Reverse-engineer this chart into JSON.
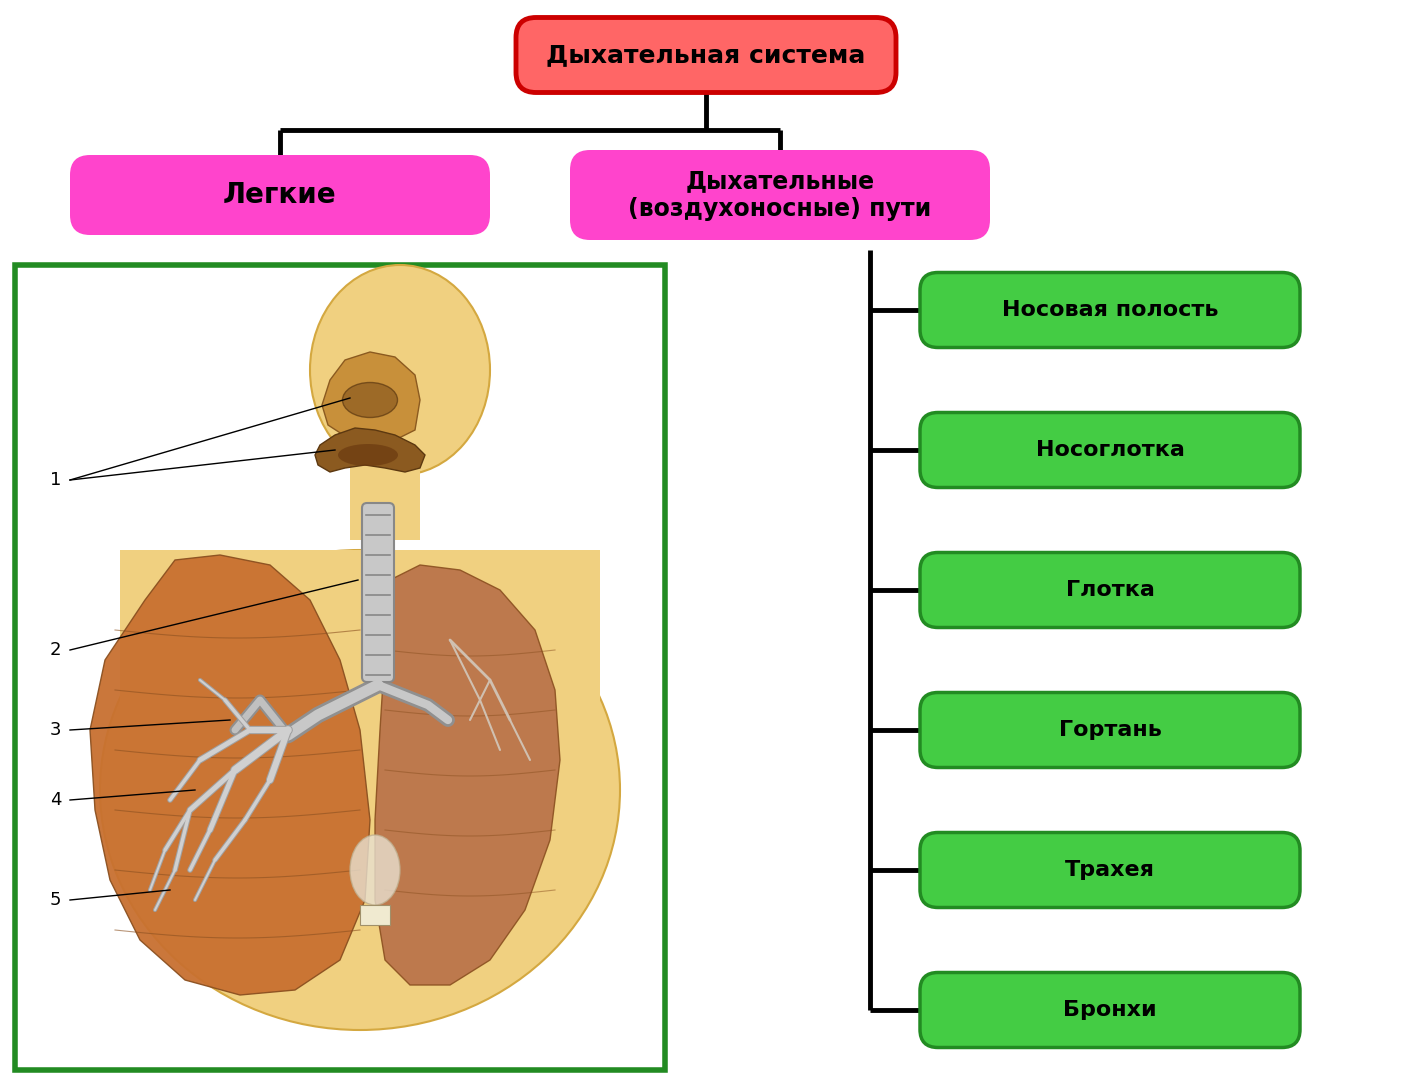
{
  "title": "Дыхательная система",
  "title_facecolor": "#FF6666",
  "title_edgecolor": "#CC0000",
  "branch1_label": "Легкие",
  "branch1_facecolor": "#FF44CC",
  "branch1_edgecolor": "#FF44CC",
  "branch2_label": "Дыхательные\n(воздухоносные) пути",
  "branch2_facecolor": "#FF44CC",
  "branch2_edgecolor": "#FF44CC",
  "green_items": [
    "Носовая полость",
    "Носоглотка",
    "Глотка",
    "Гортань",
    "Трахея",
    "Бронхи"
  ],
  "green_facecolor": "#44CC44",
  "green_edgecolor": "#228B22",
  "bg_color": "#FFFFFF",
  "image_border_color": "#228B22",
  "line_color": "#000000",
  "line_width": 3.5,
  "skin_color": "#F0D080",
  "skin_edge": "#D4A840",
  "nasal_color": "#8B5A2B",
  "trachea_color": "#A0A0A0",
  "lung_left_color": "#C87840",
  "lung_right_color": "#B87050",
  "bronchi_color": "#909090",
  "label_nums": [
    "1",
    "2",
    "3",
    "4",
    "5"
  ]
}
